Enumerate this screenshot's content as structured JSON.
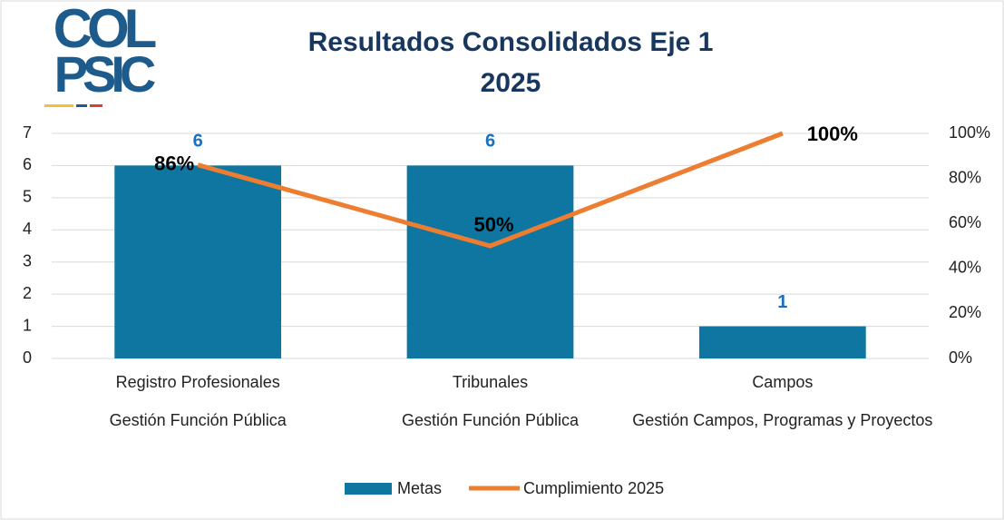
{
  "logo": {
    "line1": "COL",
    "line2": "PSIC"
  },
  "chart_data": {
    "type": "bar-line",
    "title_lines": [
      "Resultados Consolidados Eje 1",
      "2025"
    ],
    "categories": [
      "Registro Profesionales",
      "Tribunales",
      "Campos"
    ],
    "category_groups": [
      "Gestión Función Pública",
      "Gestión Función Pública",
      "Gestión Campos, Programas y Proyectos"
    ],
    "series": [
      {
        "name": "Metas",
        "type": "bar",
        "color": "#0e76a0",
        "values": [
          6,
          6,
          1
        ]
      },
      {
        "name": "Cumplimiento 2025",
        "type": "line",
        "axis": "y2",
        "color": "#ed7d31",
        "values": [
          86,
          50,
          100
        ],
        "value_labels": [
          "86%",
          "50%",
          "100%"
        ]
      }
    ],
    "ylim": [
      0,
      7
    ],
    "yticks": [
      0,
      1,
      2,
      3,
      4,
      5,
      6,
      7
    ],
    "y2lim": [
      0,
      100
    ],
    "y2ticks": [
      {
        "value": 0,
        "label": "0%"
      },
      {
        "value": 20,
        "label": "20%"
      },
      {
        "value": 40,
        "label": "40%"
      },
      {
        "value": 60,
        "label": "60%"
      },
      {
        "value": 80,
        "label": "80%"
      },
      {
        "value": 100,
        "label": "100%"
      }
    ],
    "grid": true,
    "legend": "bottom"
  }
}
